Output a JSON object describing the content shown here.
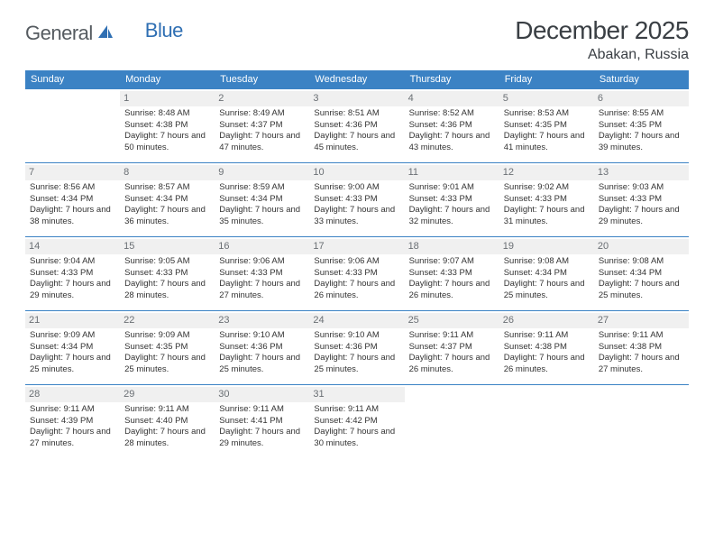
{
  "brand": {
    "name_part1": "General",
    "name_part2": "Blue",
    "icon_color": "#2f6fb3"
  },
  "title": "December 2025",
  "location": "Abakan, Russia",
  "colors": {
    "header_bg": "#3b82c4",
    "header_text": "#ffffff",
    "row_border": "#3b82c4",
    "daynum_bg": "#f0f0f0",
    "daynum_text": "#6a6f74",
    "body_text": "#333333",
    "title_text": "#3a3f44",
    "brand_gray": "#555b60",
    "brand_blue": "#2f6fb3"
  },
  "day_headers": [
    "Sunday",
    "Monday",
    "Tuesday",
    "Wednesday",
    "Thursday",
    "Friday",
    "Saturday"
  ],
  "weeks": [
    [
      {
        "num": "",
        "sunrise": "",
        "sunset": "",
        "daylight": ""
      },
      {
        "num": "1",
        "sunrise": "Sunrise: 8:48 AM",
        "sunset": "Sunset: 4:38 PM",
        "daylight": "Daylight: 7 hours and 50 minutes."
      },
      {
        "num": "2",
        "sunrise": "Sunrise: 8:49 AM",
        "sunset": "Sunset: 4:37 PM",
        "daylight": "Daylight: 7 hours and 47 minutes."
      },
      {
        "num": "3",
        "sunrise": "Sunrise: 8:51 AM",
        "sunset": "Sunset: 4:36 PM",
        "daylight": "Daylight: 7 hours and 45 minutes."
      },
      {
        "num": "4",
        "sunrise": "Sunrise: 8:52 AM",
        "sunset": "Sunset: 4:36 PM",
        "daylight": "Daylight: 7 hours and 43 minutes."
      },
      {
        "num": "5",
        "sunrise": "Sunrise: 8:53 AM",
        "sunset": "Sunset: 4:35 PM",
        "daylight": "Daylight: 7 hours and 41 minutes."
      },
      {
        "num": "6",
        "sunrise": "Sunrise: 8:55 AM",
        "sunset": "Sunset: 4:35 PM",
        "daylight": "Daylight: 7 hours and 39 minutes."
      }
    ],
    [
      {
        "num": "7",
        "sunrise": "Sunrise: 8:56 AM",
        "sunset": "Sunset: 4:34 PM",
        "daylight": "Daylight: 7 hours and 38 minutes."
      },
      {
        "num": "8",
        "sunrise": "Sunrise: 8:57 AM",
        "sunset": "Sunset: 4:34 PM",
        "daylight": "Daylight: 7 hours and 36 minutes."
      },
      {
        "num": "9",
        "sunrise": "Sunrise: 8:59 AM",
        "sunset": "Sunset: 4:34 PM",
        "daylight": "Daylight: 7 hours and 35 minutes."
      },
      {
        "num": "10",
        "sunrise": "Sunrise: 9:00 AM",
        "sunset": "Sunset: 4:33 PM",
        "daylight": "Daylight: 7 hours and 33 minutes."
      },
      {
        "num": "11",
        "sunrise": "Sunrise: 9:01 AM",
        "sunset": "Sunset: 4:33 PM",
        "daylight": "Daylight: 7 hours and 32 minutes."
      },
      {
        "num": "12",
        "sunrise": "Sunrise: 9:02 AM",
        "sunset": "Sunset: 4:33 PM",
        "daylight": "Daylight: 7 hours and 31 minutes."
      },
      {
        "num": "13",
        "sunrise": "Sunrise: 9:03 AM",
        "sunset": "Sunset: 4:33 PM",
        "daylight": "Daylight: 7 hours and 29 minutes."
      }
    ],
    [
      {
        "num": "14",
        "sunrise": "Sunrise: 9:04 AM",
        "sunset": "Sunset: 4:33 PM",
        "daylight": "Daylight: 7 hours and 29 minutes."
      },
      {
        "num": "15",
        "sunrise": "Sunrise: 9:05 AM",
        "sunset": "Sunset: 4:33 PM",
        "daylight": "Daylight: 7 hours and 28 minutes."
      },
      {
        "num": "16",
        "sunrise": "Sunrise: 9:06 AM",
        "sunset": "Sunset: 4:33 PM",
        "daylight": "Daylight: 7 hours and 27 minutes."
      },
      {
        "num": "17",
        "sunrise": "Sunrise: 9:06 AM",
        "sunset": "Sunset: 4:33 PM",
        "daylight": "Daylight: 7 hours and 26 minutes."
      },
      {
        "num": "18",
        "sunrise": "Sunrise: 9:07 AM",
        "sunset": "Sunset: 4:33 PM",
        "daylight": "Daylight: 7 hours and 26 minutes."
      },
      {
        "num": "19",
        "sunrise": "Sunrise: 9:08 AM",
        "sunset": "Sunset: 4:34 PM",
        "daylight": "Daylight: 7 hours and 25 minutes."
      },
      {
        "num": "20",
        "sunrise": "Sunrise: 9:08 AM",
        "sunset": "Sunset: 4:34 PM",
        "daylight": "Daylight: 7 hours and 25 minutes."
      }
    ],
    [
      {
        "num": "21",
        "sunrise": "Sunrise: 9:09 AM",
        "sunset": "Sunset: 4:34 PM",
        "daylight": "Daylight: 7 hours and 25 minutes."
      },
      {
        "num": "22",
        "sunrise": "Sunrise: 9:09 AM",
        "sunset": "Sunset: 4:35 PM",
        "daylight": "Daylight: 7 hours and 25 minutes."
      },
      {
        "num": "23",
        "sunrise": "Sunrise: 9:10 AM",
        "sunset": "Sunset: 4:36 PM",
        "daylight": "Daylight: 7 hours and 25 minutes."
      },
      {
        "num": "24",
        "sunrise": "Sunrise: 9:10 AM",
        "sunset": "Sunset: 4:36 PM",
        "daylight": "Daylight: 7 hours and 25 minutes."
      },
      {
        "num": "25",
        "sunrise": "Sunrise: 9:11 AM",
        "sunset": "Sunset: 4:37 PM",
        "daylight": "Daylight: 7 hours and 26 minutes."
      },
      {
        "num": "26",
        "sunrise": "Sunrise: 9:11 AM",
        "sunset": "Sunset: 4:38 PM",
        "daylight": "Daylight: 7 hours and 26 minutes."
      },
      {
        "num": "27",
        "sunrise": "Sunrise: 9:11 AM",
        "sunset": "Sunset: 4:38 PM",
        "daylight": "Daylight: 7 hours and 27 minutes."
      }
    ],
    [
      {
        "num": "28",
        "sunrise": "Sunrise: 9:11 AM",
        "sunset": "Sunset: 4:39 PM",
        "daylight": "Daylight: 7 hours and 27 minutes."
      },
      {
        "num": "29",
        "sunrise": "Sunrise: 9:11 AM",
        "sunset": "Sunset: 4:40 PM",
        "daylight": "Daylight: 7 hours and 28 minutes."
      },
      {
        "num": "30",
        "sunrise": "Sunrise: 9:11 AM",
        "sunset": "Sunset: 4:41 PM",
        "daylight": "Daylight: 7 hours and 29 minutes."
      },
      {
        "num": "31",
        "sunrise": "Sunrise: 9:11 AM",
        "sunset": "Sunset: 4:42 PM",
        "daylight": "Daylight: 7 hours and 30 minutes."
      },
      {
        "num": "",
        "sunrise": "",
        "sunset": "",
        "daylight": ""
      },
      {
        "num": "",
        "sunrise": "",
        "sunset": "",
        "daylight": ""
      },
      {
        "num": "",
        "sunrise": "",
        "sunset": "",
        "daylight": ""
      }
    ]
  ]
}
